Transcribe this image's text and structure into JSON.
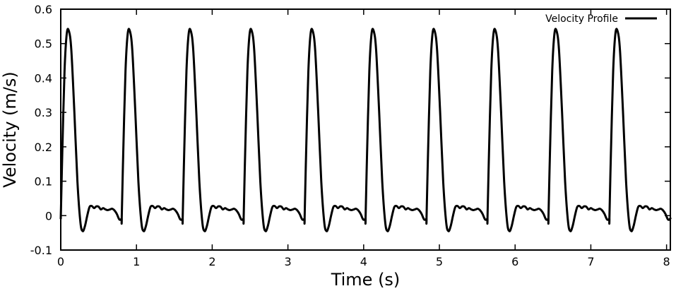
{
  "chart_data": {
    "type": "line",
    "xlabel": "Time (s)",
    "ylabel": "Velocity (m/s)",
    "xlim": [
      0,
      8.05
    ],
    "ylim": [
      -0.1,
      0.6
    ],
    "x_ticks": [
      0,
      1,
      2,
      3,
      4,
      5,
      6,
      7,
      8
    ],
    "y_ticks": [
      -0.1,
      0,
      0.1,
      0.2,
      0.3,
      0.4,
      0.5,
      0.6
    ],
    "y_tick_labels": [
      "-0.1",
      "0",
      "0.1",
      "0.2",
      "0.3",
      "0.4",
      "0.5",
      "0.6"
    ],
    "grid": false,
    "legend_position": "top-right",
    "series": [
      {
        "name": "Velocity Profile",
        "color": "#000000",
        "period": 0.805,
        "x": [
          0,
          0.02,
          0.05,
          0.08,
          0.11,
          0.14,
          0.18,
          0.22,
          0.26,
          0.29,
          0.32,
          0.35,
          0.38,
          0.41,
          0.44,
          0.47,
          0.5,
          0.53,
          0.56,
          0.59,
          0.62,
          0.65,
          0.68,
          0.71,
          0.74,
          0.77,
          0.79,
          0.805,
          0.83,
          0.86,
          0.89,
          0.915,
          0.945,
          0.975,
          1.015,
          1.055,
          1.095,
          1.125,
          1.155,
          1.185,
          1.215,
          1.245,
          1.275,
          1.305,
          1.335,
          1.365,
          1.395,
          1.425,
          1.455,
          1.485,
          1.515,
          1.545,
          1.575,
          1.595,
          1.61,
          7.88,
          7.91,
          7.94,
          7.97,
          8.0,
          8.03
        ],
        "y": [
          -0.01,
          0.18,
          0.42,
          0.53,
          0.535,
          0.48,
          0.3,
          0.1,
          -0.02,
          -0.045,
          -0.03,
          0.0,
          0.025,
          0.028,
          0.022,
          0.027,
          0.026,
          0.018,
          0.022,
          0.018,
          0.016,
          0.018,
          0.02,
          0.015,
          0.005,
          -0.01,
          -0.012,
          -0.008,
          0.18,
          0.42,
          0.53,
          0.535,
          0.48,
          0.3,
          0.1,
          -0.02,
          -0.045,
          -0.03,
          0.0,
          0.025,
          0.028,
          0.022,
          0.027,
          0.026,
          0.018,
          0.022,
          0.018,
          0.016,
          0.018,
          0.02,
          0.015,
          0.005,
          -0.01,
          -0.012,
          -0.008,
          0.018,
          0.02,
          0.015,
          0.005,
          -0.005,
          -0.012
        ]
      }
    ]
  }
}
